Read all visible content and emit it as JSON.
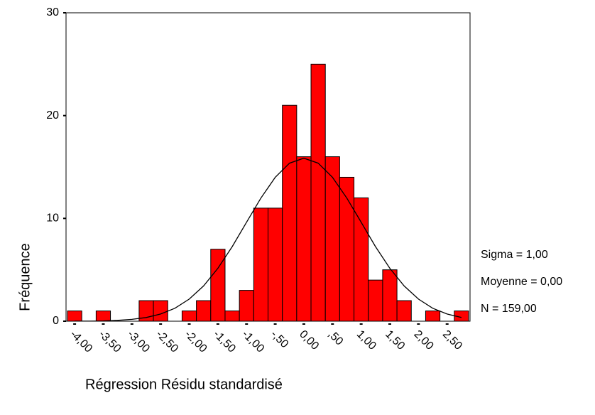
{
  "chart_data": {
    "type": "histogram",
    "xlabel": "Régression Résidu standardisé",
    "ylabel": "Fréquence",
    "bins": [
      -4.125,
      -3.875,
      -3.625,
      -3.375,
      -3.125,
      -2.875,
      -2.625,
      -2.375,
      -2.125,
      -1.875,
      -1.625,
      -1.375,
      -1.125,
      -0.875,
      -0.625,
      -0.375,
      -0.125,
      0.125,
      0.375,
      0.625,
      0.875,
      1.125,
      1.375,
      1.625,
      1.875,
      2.125,
      2.375,
      2.625,
      2.875
    ],
    "values": [
      1,
      0,
      1,
      0,
      0,
      2,
      2,
      0,
      1,
      2,
      7,
      1,
      3,
      11,
      11,
      21,
      16,
      25,
      16,
      14,
      12,
      4,
      5,
      2,
      0,
      1,
      0,
      1
    ],
    "color": "#ff0000",
    "curve": {
      "x": [
        -4,
        -3.75,
        -3.5,
        -3.25,
        -3,
        -2.75,
        -2.5,
        -2.25,
        -2,
        -1.75,
        -1.5,
        -1.25,
        -1,
        -0.75,
        -0.5,
        -0.25,
        0,
        0.25,
        0.5,
        0.75,
        1,
        1.25,
        1.5,
        1.75,
        2,
        2.25,
        2.5,
        2.75
      ],
      "values": [
        0.01,
        0.01,
        0.03,
        0.08,
        0.18,
        0.36,
        0.7,
        1.26,
        2.15,
        3.43,
        5.15,
        7.26,
        9.62,
        11.97,
        13.99,
        15.37,
        15.86,
        15.37,
        13.99,
        11.97,
        9.62,
        7.26,
        5.15,
        3.43,
        2.15,
        1.26,
        0.7,
        0.36
      ]
    },
    "xlim": [
      -4.15,
      2.9
    ],
    "ylim": [
      0,
      30
    ],
    "xticks": [
      {
        "value": -4,
        "label": "-4,00"
      },
      {
        "value": -3.5,
        "label": "-3,50"
      },
      {
        "value": -3,
        "label": "-3,00"
      },
      {
        "value": -2.5,
        "label": "-2,50"
      },
      {
        "value": -2,
        "label": "-2,00"
      },
      {
        "value": -1.5,
        "label": "-1,50"
      },
      {
        "value": -1,
        "label": "-1,00"
      },
      {
        "value": -0.5,
        "label": "-,50"
      },
      {
        "value": 0,
        "label": "0,00"
      },
      {
        "value": 0.5,
        "label": ",50"
      },
      {
        "value": 1,
        "label": "1,00"
      },
      {
        "value": 1.5,
        "label": "1,50"
      },
      {
        "value": 2,
        "label": "2,00"
      },
      {
        "value": 2.5,
        "label": "2,50"
      }
    ],
    "yticks": [
      0,
      10,
      20,
      30
    ],
    "annotations": [
      "Sigma = 1,00",
      "Moyenne = 0,00",
      "N = 159,00"
    ]
  }
}
